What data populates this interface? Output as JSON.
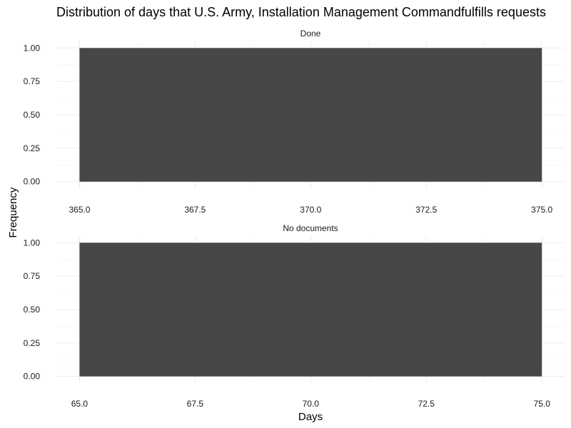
{
  "chart_data": {
    "type": "bar",
    "title": "Distribution of days that U.S. Army, Installation Management Commandfulfills requests",
    "xlabel": "Days",
    "ylabel": "Frequency",
    "bar_color": "#474747",
    "grid": true,
    "panels": [
      {
        "label": "Done",
        "xlim": [
          365,
          375
        ],
        "ylim": [
          0,
          1
        ],
        "x_ticks": [
          "365.0",
          "367.5",
          "370.0",
          "372.5",
          "375.0"
        ],
        "y_ticks": [
          "0.00",
          "0.25",
          "0.50",
          "0.75",
          "1.00"
        ],
        "bars": [
          {
            "x_start": 365,
            "x_end": 375,
            "value": 1
          }
        ]
      },
      {
        "label": "No documents",
        "xlim": [
          65,
          75
        ],
        "ylim": [
          0,
          1
        ],
        "x_ticks": [
          "65.0",
          "67.5",
          "70.0",
          "72.5",
          "75.0"
        ],
        "y_ticks": [
          "0.00",
          "0.25",
          "0.50",
          "0.75",
          "1.00"
        ],
        "bars": [
          {
            "x_start": 65,
            "x_end": 75,
            "value": 1
          }
        ]
      }
    ]
  }
}
